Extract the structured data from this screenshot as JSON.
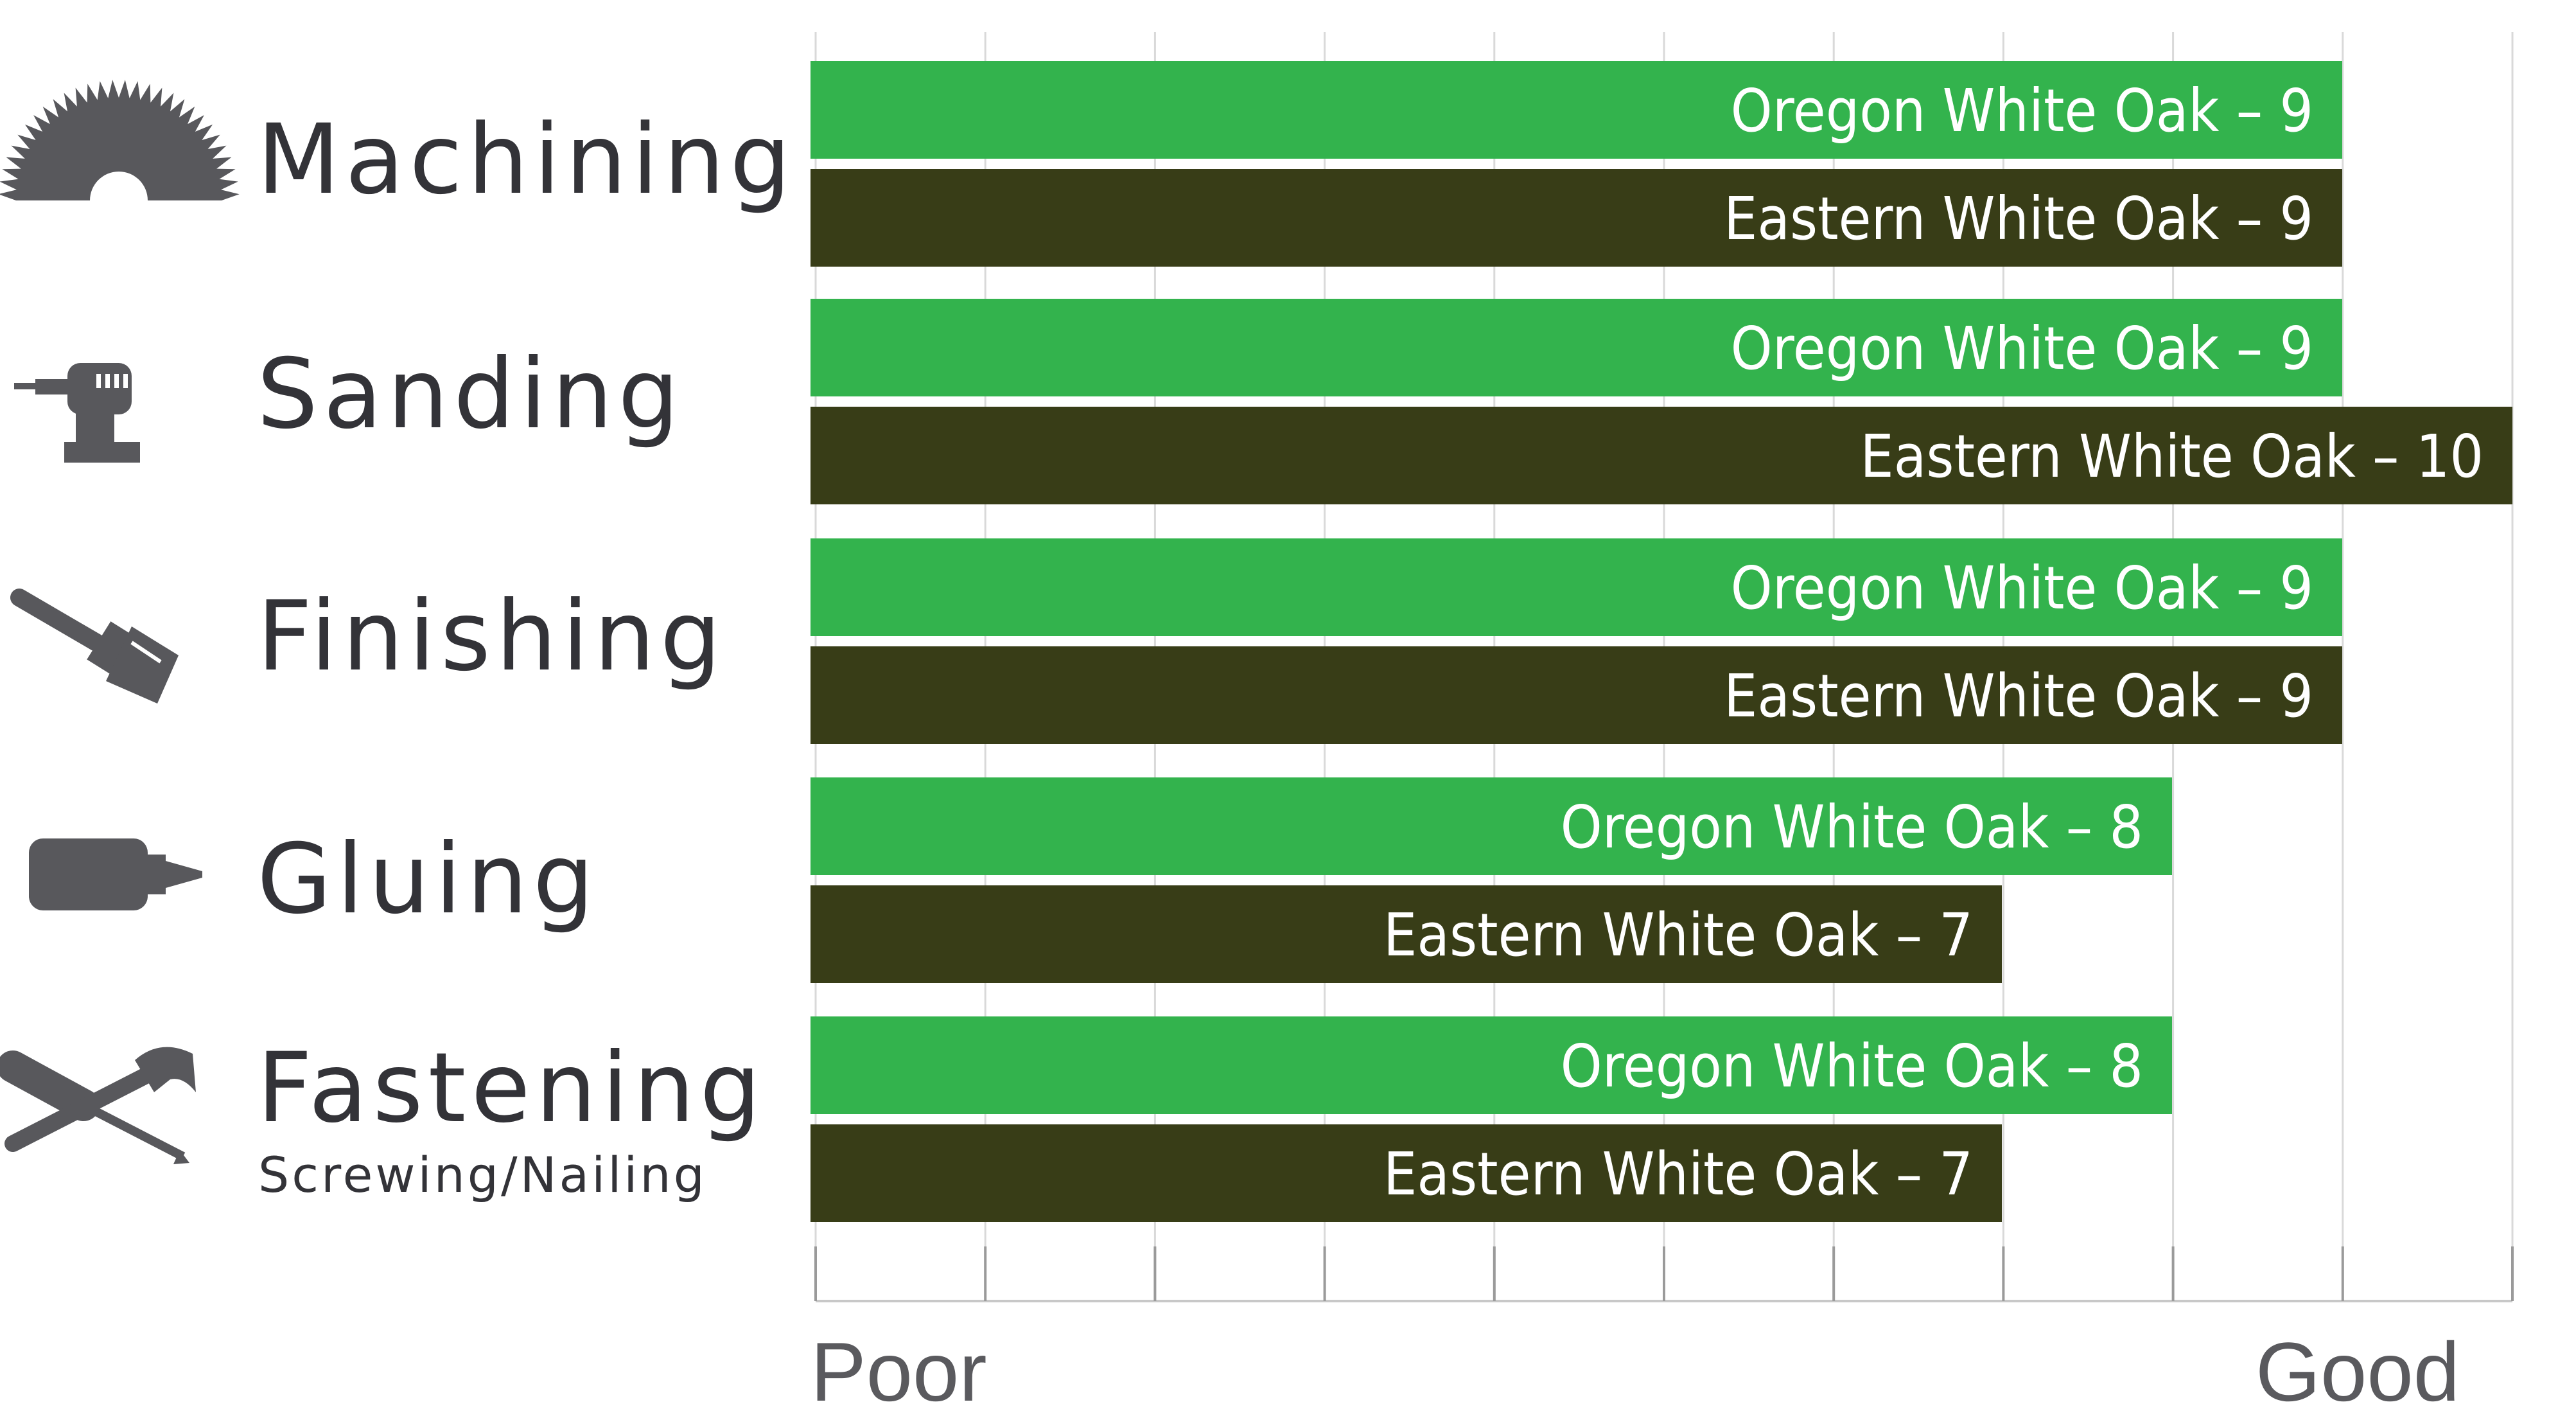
{
  "chart_data": {
    "type": "bar",
    "orientation": "horizontal",
    "categories": [
      {
        "name": "Machining",
        "sub": "",
        "icon": "saw-blade-icon"
      },
      {
        "name": "Sanding",
        "sub": "",
        "icon": "orbital-sander-icon"
      },
      {
        "name": "Finishing",
        "sub": "",
        "icon": "paintbrush-icon"
      },
      {
        "name": "Gluing",
        "sub": "",
        "icon": "glue-bottle-icon"
      },
      {
        "name": "Fastening",
        "sub": "Screwing/Nailing",
        "icon": "screwdriver-hammer-icon"
      }
    ],
    "series": [
      {
        "name": "Oregon White Oak",
        "color": "#33b34d",
        "values": [
          9,
          9,
          9,
          8,
          8
        ]
      },
      {
        "name": "Eastern White Oak",
        "color": "#383d17",
        "values": [
          9,
          10,
          9,
          7,
          7
        ]
      }
    ],
    "label_separator": "–",
    "xlim": [
      0,
      10
    ],
    "x_ticks": 11,
    "axis_low_label": "Poor",
    "axis_high_label": "Good",
    "grid": true,
    "legend": "none",
    "grid_color": "#d9d9d9",
    "icon_color": "#58585c"
  }
}
